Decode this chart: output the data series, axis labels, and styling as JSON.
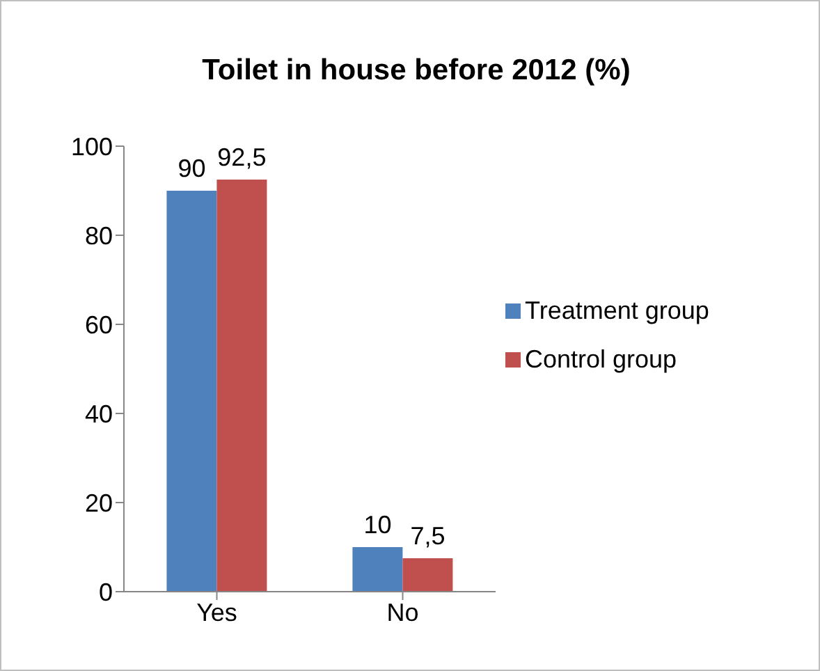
{
  "chart_data": {
    "type": "bar",
    "title": "Toilet in house before 2012 (%)",
    "categories": [
      "Yes",
      "No"
    ],
    "series": [
      {
        "name": "Treatment group",
        "color": "#4f81bd",
        "values": [
          90,
          10
        ],
        "value_labels": [
          "90",
          "10"
        ]
      },
      {
        "name": "Control group",
        "color": "#c0504d",
        "values": [
          92.5,
          7.5
        ],
        "value_labels": [
          "92,5",
          "7,5"
        ]
      }
    ],
    "ylim": [
      0,
      100
    ],
    "yticks": [
      0,
      20,
      40,
      60,
      80,
      100
    ],
    "grid": false,
    "legend": "right"
  }
}
